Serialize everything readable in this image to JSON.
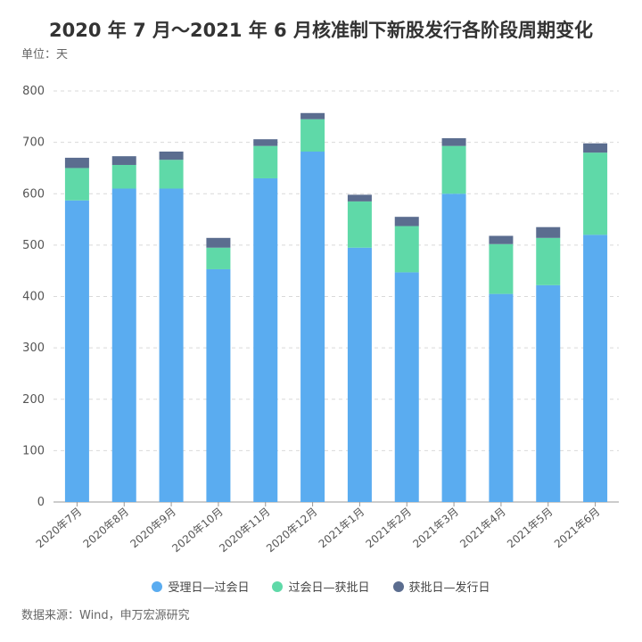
{
  "title": "2020 年 7 月～2021 年 6 月核准制下新股发行各阶段周期变化",
  "unit_label": "单位：天",
  "source": "数据来源：Wind，申万宏源研究",
  "colors": {
    "series1": "#5aacf0",
    "series2": "#5fd9a8",
    "series3": "#5b6d8f",
    "grid": "#d9d9d9",
    "axis": "#999999",
    "text": "#555555"
  },
  "chart_data": {
    "type": "bar",
    "stacked": true,
    "categories": [
      "2020年7月",
      "2020年8月",
      "2020年9月",
      "2020年10月",
      "2020年11月",
      "2020年12月",
      "2021年1月",
      "2021年2月",
      "2021年3月",
      "2021年4月",
      "2021年5月",
      "2021年6月"
    ],
    "series": [
      {
        "name": "受理日—过会日",
        "values": [
          587,
          610,
          610,
          453,
          630,
          682,
          495,
          447,
          600,
          405,
          422,
          520
        ]
      },
      {
        "name": "过会日—获批日",
        "values": [
          63,
          46,
          56,
          42,
          63,
          63,
          90,
          90,
          93,
          97,
          92,
          160
        ]
      },
      {
        "name": "获批日—发行日",
        "values": [
          20,
          17,
          16,
          19,
          13,
          12,
          13,
          18,
          15,
          16,
          21,
          18
        ]
      }
    ],
    "ylim": [
      0,
      800
    ],
    "yticks": [
      0,
      100,
      200,
      300,
      400,
      500,
      600,
      700,
      800
    ],
    "grid": true,
    "legend_position": "bottom"
  }
}
